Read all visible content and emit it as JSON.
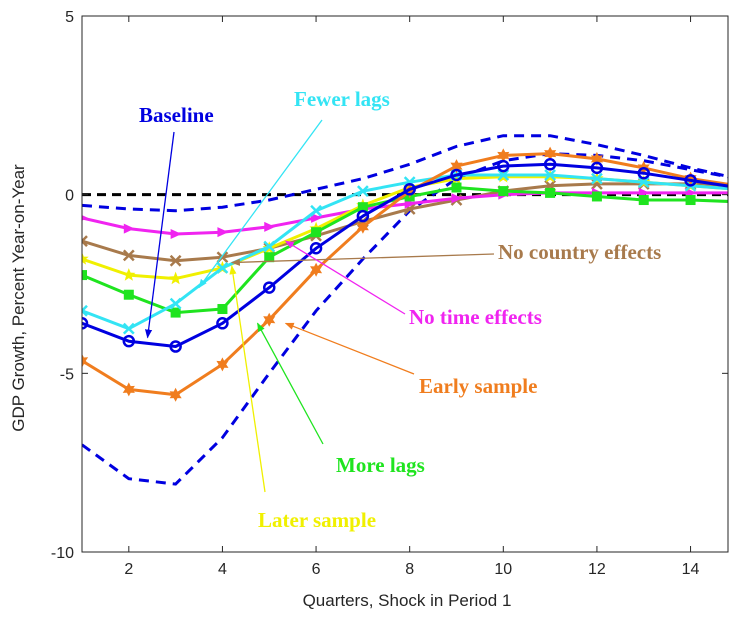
{
  "chart_data": {
    "type": "line",
    "xlabel": "Quarters, Shock in Period 1",
    "ylabel": "GDP Growth, Percent Year-on-Year",
    "xlim": [
      1,
      14.8
    ],
    "ylim": [
      -10,
      5
    ],
    "x_ticks": [
      2,
      4,
      6,
      8,
      10,
      12,
      14
    ],
    "y_ticks": [
      -10,
      -5,
      0,
      5
    ],
    "y_tick_labels": [
      "-10",
      "-5",
      "0",
      "5"
    ],
    "grid": false,
    "zero_line": {
      "y": 0,
      "color": "#000000",
      "style": "dashed"
    },
    "x": [
      1,
      2,
      3,
      4,
      5,
      6,
      7,
      8,
      9,
      10,
      11,
      12,
      13,
      14,
      15
    ],
    "series": [
      {
        "name": "Baseline",
        "color": "#0000e0",
        "marker": "circle",
        "values": [
          -3.6,
          -4.1,
          -4.25,
          -3.6,
          -2.6,
          -1.5,
          -0.6,
          0.15,
          0.55,
          0.8,
          0.85,
          0.75,
          0.6,
          0.4,
          0.2
        ]
      },
      {
        "name": "Early sample",
        "color": "#f07d1e",
        "marker": "hexagram",
        "values": [
          -4.65,
          -5.45,
          -5.6,
          -4.75,
          -3.5,
          -2.1,
          -0.9,
          0.1,
          0.8,
          1.1,
          1.15,
          1.0,
          0.75,
          0.45,
          0.25
        ]
      },
      {
        "name": "Fewer lags",
        "color": "#33e4f4",
        "marker": "x",
        "values": [
          -3.25,
          -3.75,
          -3.05,
          -2.05,
          -1.45,
          -0.45,
          0.1,
          0.35,
          0.55,
          0.55,
          0.55,
          0.45,
          0.35,
          0.25,
          0.15
        ]
      },
      {
        "name": "More lags",
        "color": "#1fe41f",
        "marker": "square",
        "values": [
          -2.25,
          -2.8,
          -3.3,
          -3.2,
          -1.75,
          -1.05,
          -0.35,
          -0.05,
          0.2,
          0.1,
          0.05,
          -0.05,
          -0.15,
          -0.15,
          -0.2
        ]
      },
      {
        "name": "Later sample",
        "color": "#f0f000",
        "marker": "star",
        "values": [
          -1.8,
          -2.25,
          -2.35,
          -2.05,
          -1.5,
          -0.95,
          -0.3,
          0.2,
          0.45,
          0.5,
          0.5,
          0.45,
          0.35,
          0.25,
          0.15
        ]
      },
      {
        "name": "No time effects",
        "color": "#f024f0",
        "marker": "triangle",
        "values": [
          -0.65,
          -0.95,
          -1.1,
          -1.05,
          -0.9,
          -0.65,
          -0.4,
          -0.25,
          -0.1,
          0.0,
          0.05,
          0.05,
          0.05,
          0.05,
          0.05
        ]
      },
      {
        "name": "No country effects",
        "color": "#a87a4c",
        "marker": "x",
        "values": [
          -1.3,
          -1.7,
          -1.85,
          -1.75,
          -1.5,
          -1.15,
          -0.75,
          -0.4,
          -0.15,
          0.1,
          0.25,
          0.3,
          0.3,
          0.3,
          0.25
        ]
      }
    ],
    "bands": [
      {
        "color": "#0000e0",
        "style": "dashed",
        "values": [
          -7.0,
          -7.95,
          -8.1,
          -6.8,
          -5.0,
          -3.25,
          -1.8,
          -0.45,
          0.45,
          0.95,
          1.15,
          1.1,
          0.95,
          0.7,
          0.45
        ]
      },
      {
        "color": "#0000e0",
        "style": "dashed",
        "values": [
          -0.3,
          -0.4,
          -0.45,
          -0.35,
          -0.15,
          0.15,
          0.45,
          0.85,
          1.35,
          1.65,
          1.65,
          1.4,
          1.1,
          0.75,
          0.45
        ]
      }
    ],
    "annotations": [
      {
        "text": "Baseline",
        "color": "#0000e0",
        "arrow_to": [
          2.4,
          -4.0
        ]
      },
      {
        "text": "Fewer lags",
        "color": "#33e4f4",
        "arrow_to": [
          3.5,
          -2.6
        ]
      },
      {
        "text": "No country effects",
        "color": "#a87a4c",
        "arrow_to": [
          4.2,
          -1.9
        ]
      },
      {
        "text": "No time effects",
        "color": "#f024f0",
        "arrow_to": [
          5.35,
          -1.3
        ]
      },
      {
        "text": "Early sample",
        "color": "#f07d1e",
        "arrow_to": [
          5.35,
          -3.6
        ]
      },
      {
        "text": "More lags",
        "color": "#1fe41f",
        "arrow_to": [
          4.75,
          -3.6
        ]
      },
      {
        "text": "Later sample",
        "color": "#f0f000",
        "arrow_to": [
          4.2,
          -2.0
        ]
      }
    ]
  }
}
